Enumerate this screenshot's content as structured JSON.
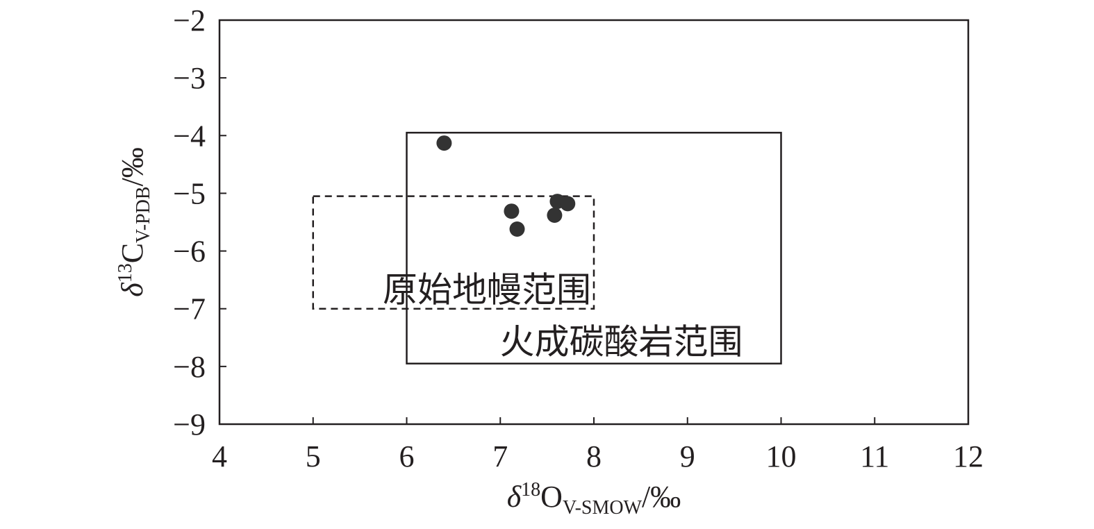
{
  "chart_data": {
    "type": "scatter",
    "xlabel": {
      "symbol": "δ",
      "sup": "18",
      "base": "O",
      "sub": "V-SMOW",
      "unit": "/‰"
    },
    "ylabel": {
      "symbol": "δ",
      "sup": "13",
      "base": "C",
      "sub": "V-PDB",
      "unit": "/‰"
    },
    "x": [
      6.4,
      7.12,
      7.18,
      7.61,
      7.72,
      7.58
    ],
    "values": [
      -4.13,
      -5.31,
      -5.62,
      -5.14,
      -5.18,
      -5.38
    ],
    "color": "#333333",
    "xlim": [
      4,
      12
    ],
    "xticks": [
      4,
      5,
      6,
      7,
      8,
      9,
      10,
      11,
      12
    ],
    "ylim": [
      -9,
      -2
    ],
    "yticks": [
      {
        "value": -9,
        "label": "−9"
      },
      {
        "value": -8,
        "label": "−8"
      },
      {
        "value": -7,
        "label": "−7"
      },
      {
        "value": -6,
        "label": "−6"
      },
      {
        "value": -5,
        "label": "−5"
      },
      {
        "value": -4,
        "label": "−4"
      },
      {
        "value": -3,
        "label": "−3"
      },
      {
        "value": -2,
        "label": "−2"
      }
    ],
    "regions": [
      {
        "label": "原始地幔范围",
        "style": "dashed",
        "xrange": [
          5,
          8
        ],
        "yrange": [
          -7,
          -5.05
        ]
      },
      {
        "label": "火成碳酸岩范围",
        "style": "solid",
        "xrange": [
          6,
          10
        ],
        "yrange": [
          -7.95,
          -3.95
        ]
      }
    ]
  }
}
